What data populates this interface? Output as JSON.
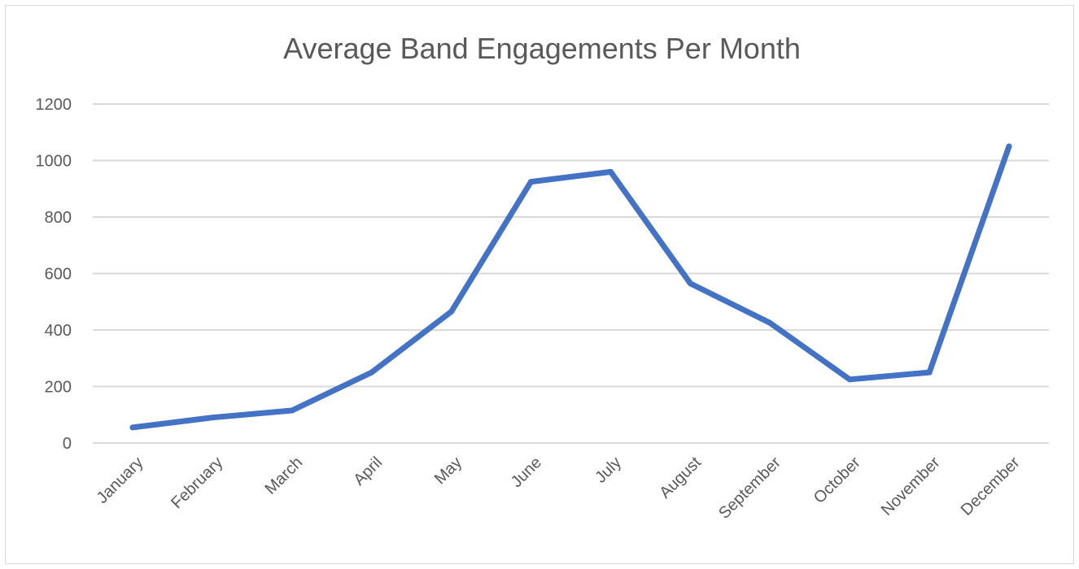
{
  "chart_data": {
    "type": "line",
    "title": "Average Band Engagements Per Month",
    "xlabel": "",
    "ylabel": "",
    "categories": [
      "January",
      "February",
      "March",
      "April",
      "May",
      "June",
      "July",
      "August",
      "September",
      "October",
      "November",
      "December"
    ],
    "series": [
      {
        "color": "#4472c4",
        "values": [
          55,
          90,
          115,
          250,
          465,
          925,
          960,
          565,
          425,
          225,
          250,
          1050
        ]
      }
    ],
    "ylim": [
      0,
      1200
    ],
    "yticks": [
      0,
      200,
      400,
      600,
      800,
      1000,
      1200
    ],
    "grid": true,
    "legend": "none"
  }
}
